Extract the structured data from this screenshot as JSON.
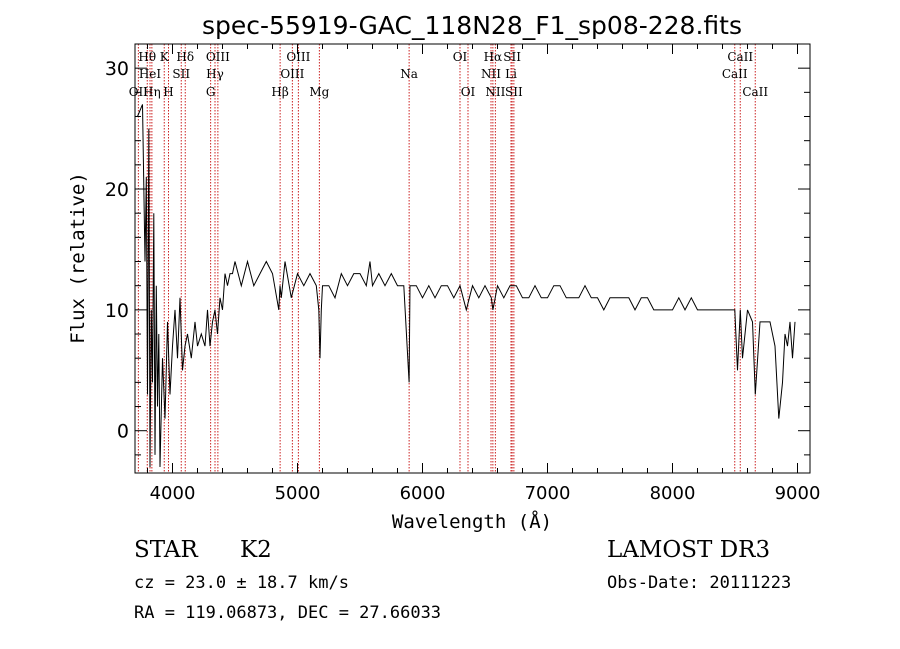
{
  "chart_data": {
    "type": "line",
    "title": "spec-55919-GAC_118N28_F1_sp08-228.fits",
    "xlabel": "Wavelength (Å)",
    "ylabel": "Flux (relative)",
    "xlim": [
      3700,
      9100
    ],
    "ylim": [
      -3.5,
      32
    ],
    "xticks": [
      4000,
      5000,
      6000,
      7000,
      8000,
      9000
    ],
    "yticks": [
      0,
      10,
      20,
      30
    ],
    "series": [
      {
        "name": "flux",
        "x": [
          3720,
          3760,
          3780,
          3790,
          3800,
          3810,
          3820,
          3830,
          3840,
          3850,
          3860,
          3870,
          3880,
          3890,
          3900,
          3920,
          3940,
          3960,
          3980,
          4000,
          4020,
          4040,
          4060,
          4080,
          4100,
          4120,
          4150,
          4180,
          4200,
          4230,
          4260,
          4280,
          4300,
          4320,
          4340,
          4360,
          4380,
          4400,
          4420,
          4440,
          4460,
          4480,
          4500,
          4550,
          4600,
          4650,
          4700,
          4750,
          4800,
          4850,
          4860,
          4870,
          4900,
          4950,
          5000,
          5050,
          5100,
          5150,
          5170,
          5180,
          5190,
          5200,
          5250,
          5300,
          5350,
          5400,
          5450,
          5500,
          5550,
          5580,
          5600,
          5650,
          5700,
          5750,
          5800,
          5850,
          5893,
          5900,
          5950,
          6000,
          6050,
          6100,
          6150,
          6200,
          6250,
          6300,
          6350,
          6400,
          6450,
          6500,
          6550,
          6563,
          6600,
          6650,
          6700,
          6750,
          6800,
          6850,
          6900,
          6950,
          7000,
          7050,
          7100,
          7150,
          7200,
          7250,
          7300,
          7350,
          7400,
          7450,
          7500,
          7550,
          7600,
          7650,
          7700,
          7750,
          7800,
          7850,
          7900,
          7950,
          8000,
          8050,
          8100,
          8150,
          8200,
          8250,
          8300,
          8350,
          8400,
          8450,
          8498,
          8520,
          8542,
          8560,
          8600,
          8640,
          8662,
          8700,
          8750,
          8780,
          8800,
          8820,
          8850,
          8880,
          8900,
          8920,
          8940,
          8960,
          8980
        ],
        "values": [
          26,
          27,
          14,
          21,
          3,
          25,
          -3,
          10,
          4,
          18,
          -2,
          12,
          2,
          8,
          -3,
          6,
          1,
          9,
          3,
          7,
          10,
          6,
          11,
          5,
          7,
          8,
          6,
          9,
          7,
          8,
          7,
          10,
          7,
          9,
          10,
          8,
          11,
          10,
          13,
          12,
          13,
          13,
          14,
          12,
          14,
          12,
          13,
          14,
          13,
          10,
          12,
          11,
          14,
          11,
          13,
          12,
          13,
          12,
          10,
          6,
          10,
          12,
          12,
          11,
          13,
          12,
          13,
          13,
          12,
          14,
          12,
          13,
          12,
          13,
          12,
          12,
          4,
          12,
          12,
          11,
          12,
          11,
          12,
          12,
          11,
          12,
          10,
          12,
          11,
          12,
          11,
          10,
          12,
          11,
          12,
          12,
          11,
          11,
          12,
          11,
          11,
          12,
          12,
          11,
          11,
          11,
          12,
          11,
          11,
          10,
          11,
          11,
          11,
          11,
          10,
          11,
          11,
          10,
          10,
          10,
          10,
          11,
          10,
          11,
          10,
          10,
          10,
          10,
          10,
          10,
          10,
          5,
          10,
          6,
          10,
          9,
          3,
          9,
          9,
          9,
          8,
          7,
          1,
          4,
          8,
          7,
          9,
          6,
          9
        ]
      }
    ],
    "lines": [
      {
        "label": "Hθ",
        "wl": 3798,
        "row": 0
      },
      {
        "label": "HeI",
        "wl": 3820,
        "row": 1
      },
      {
        "label": "OII",
        "wl": 3727,
        "row": 2
      },
      {
        "label": "Hη",
        "wl": 3835,
        "row": 2
      },
      {
        "label": "K",
        "wl": 3934,
        "row": 0
      },
      {
        "label": "SII",
        "wl": 4070,
        "row": 1
      },
      {
        "label": "H",
        "wl": 3968,
        "row": 2
      },
      {
        "label": "Hδ",
        "wl": 4102,
        "row": 0
      },
      {
        "label": "OIII",
        "wl": 4363,
        "row": 0
      },
      {
        "label": "Hγ",
        "wl": 4340,
        "row": 1
      },
      {
        "label": "G",
        "wl": 4305,
        "row": 2
      },
      {
        "label": "OIII",
        "wl": 5007,
        "row": 0
      },
      {
        "label": "OIII",
        "wl": 4959,
        "row": 1
      },
      {
        "label": "Hβ",
        "wl": 4861,
        "row": 2
      },
      {
        "label": "Mg",
        "wl": 5175,
        "row": 2
      },
      {
        "label": "Na",
        "wl": 5893,
        "row": 1
      },
      {
        "label": "OI",
        "wl": 6300,
        "row": 0
      },
      {
        "label": "OI",
        "wl": 6364,
        "row": 2
      },
      {
        "label": "Hα",
        "wl": 6563,
        "row": 0
      },
      {
        "label": "SII",
        "wl": 6717,
        "row": 0
      },
      {
        "label": "NII",
        "wl": 6548,
        "row": 1
      },
      {
        "label": "Li",
        "wl": 6708,
        "row": 1
      },
      {
        "label": "NII",
        "wl": 6583,
        "row": 2
      },
      {
        "label": "SII",
        "wl": 6731,
        "row": 2
      },
      {
        "label": "CaII",
        "wl": 8542,
        "row": 0
      },
      {
        "label": "CaII",
        "wl": 8498,
        "row": 1
      },
      {
        "label": "CaII",
        "wl": 8662,
        "row": 2
      }
    ],
    "colors": {
      "spectrum": "#000000",
      "lines": "#cc2222",
      "axes": "#000000"
    }
  },
  "info": {
    "class": "STAR",
    "subclass": "K2",
    "survey": "LAMOST DR3",
    "cz": "cz = 23.0 ± 18.7 km/s",
    "obs_date": "Obs-Date: 20111223",
    "radec": "RA = 119.06873, DEC =  27.66033"
  }
}
